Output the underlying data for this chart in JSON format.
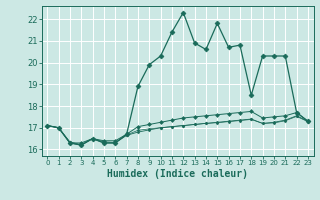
{
  "xlabel": "Humidex (Indice chaleur)",
  "background_color": "#cce8e4",
  "grid_color": "#b0d5d0",
  "line_color": "#1a6b5a",
  "ylim": [
    15.7,
    22.6
  ],
  "xlim": [
    -0.5,
    23.5
  ],
  "yticks": [
    16,
    17,
    18,
    19,
    20,
    21,
    22
  ],
  "xticks": [
    0,
    1,
    2,
    3,
    4,
    5,
    6,
    7,
    8,
    9,
    10,
    11,
    12,
    13,
    14,
    15,
    16,
    17,
    18,
    19,
    20,
    21,
    22,
    23
  ],
  "line1_x": [
    0,
    1,
    2,
    3,
    4,
    5,
    6,
    7,
    8,
    9,
    10,
    11,
    12,
    13,
    14,
    15,
    16,
    17,
    18,
    19,
    20,
    21,
    22,
    23
  ],
  "line1_y": [
    17.1,
    17.0,
    16.3,
    16.2,
    16.5,
    16.3,
    16.3,
    16.7,
    18.9,
    19.9,
    20.3,
    21.4,
    22.3,
    20.9,
    20.6,
    21.8,
    20.7,
    20.8,
    18.5,
    20.3,
    20.3,
    20.3,
    17.7,
    17.3
  ],
  "line2_x": [
    0,
    1,
    2,
    3,
    4,
    5,
    6,
    7,
    8,
    9,
    10,
    11,
    12,
    13,
    14,
    15,
    16,
    17,
    18,
    19,
    20,
    21,
    22,
    23
  ],
  "line2_y": [
    17.1,
    17.0,
    16.3,
    16.3,
    16.5,
    16.4,
    16.4,
    16.7,
    17.05,
    17.15,
    17.25,
    17.35,
    17.45,
    17.5,
    17.55,
    17.6,
    17.65,
    17.7,
    17.75,
    17.45,
    17.5,
    17.55,
    17.7,
    17.3
  ],
  "line3_x": [
    0,
    1,
    2,
    3,
    4,
    5,
    6,
    7,
    8,
    9,
    10,
    11,
    12,
    13,
    14,
    15,
    16,
    17,
    18,
    19,
    20,
    21,
    22,
    23
  ],
  "line3_y": [
    17.1,
    17.0,
    16.3,
    16.2,
    16.5,
    16.3,
    16.3,
    16.65,
    16.8,
    16.9,
    17.0,
    17.05,
    17.1,
    17.15,
    17.2,
    17.25,
    17.3,
    17.35,
    17.4,
    17.2,
    17.25,
    17.35,
    17.55,
    17.3
  ],
  "line4_x": [
    0,
    1,
    2,
    3,
    4,
    5,
    6,
    7,
    8,
    9,
    10,
    11,
    12,
    13,
    14,
    15,
    16,
    17,
    18,
    19,
    20,
    21,
    22,
    23
  ],
  "line4_y": [
    17.1,
    17.0,
    16.35,
    16.22,
    16.5,
    16.35,
    16.32,
    16.67,
    16.88,
    16.95,
    17.0,
    17.05,
    17.1,
    17.15,
    17.2,
    17.23,
    17.28,
    17.33,
    17.38,
    17.2,
    17.22,
    17.32,
    17.52,
    17.28
  ]
}
